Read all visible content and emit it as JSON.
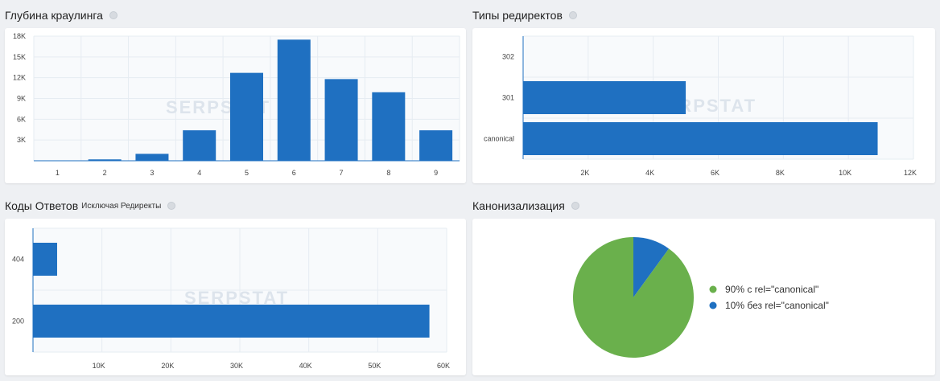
{
  "watermark": "SERPSTAT",
  "colors": {
    "bar": "#1f70c1",
    "pie_canonical": "#6ab04c",
    "pie_no_canonical": "#1f70c1",
    "grid": "#e6ecf2"
  },
  "panels": {
    "crawl_depth": {
      "title": "Глубина краулинга"
    },
    "redirect_types": {
      "title": "Типы редиректов"
    },
    "response_codes": {
      "title": "Коды Ответов",
      "subtitle": "Исключая Редиректы"
    },
    "canonicalization": {
      "title": "Канонизализация"
    }
  },
  "chart_data": [
    {
      "id": "crawl_depth",
      "type": "bar",
      "categories": [
        "1",
        "2",
        "3",
        "4",
        "5",
        "6",
        "7",
        "8",
        "9"
      ],
      "values": [
        0,
        200,
        1000,
        4400,
        12700,
        17500,
        11800,
        9900,
        4400
      ],
      "ylim": [
        0,
        18000
      ],
      "yticks": [
        "3K",
        "6K",
        "9K",
        "12K",
        "15K",
        "18K"
      ],
      "ytick_values": [
        3000,
        6000,
        9000,
        12000,
        15000,
        18000
      ]
    },
    {
      "id": "redirect_types",
      "type": "bar",
      "orientation": "horizontal",
      "categories": [
        "302",
        "301",
        "canonical"
      ],
      "values": [
        0,
        5000,
        10900
      ],
      "xlim": [
        0,
        12000
      ],
      "xticks": [
        "2K",
        "4K",
        "6K",
        "8K",
        "10K",
        "12K"
      ],
      "xtick_values": [
        2000,
        4000,
        6000,
        8000,
        10000,
        12000
      ]
    },
    {
      "id": "response_codes",
      "type": "bar",
      "orientation": "horizontal",
      "categories": [
        "404",
        "200"
      ],
      "values": [
        3500,
        57500
      ],
      "xlim": [
        0,
        60000
      ],
      "xticks": [
        "10K",
        "20K",
        "30K",
        "40K",
        "50K",
        "60K"
      ],
      "xtick_values": [
        10000,
        20000,
        30000,
        40000,
        50000,
        60000
      ]
    },
    {
      "id": "canonicalization",
      "type": "pie",
      "slices": [
        {
          "label": "10% без rel=\"canonical\"",
          "value": 10,
          "color": "#1f70c1"
        },
        {
          "label": "90% с rel=\"canonical\"",
          "value": 90,
          "color": "#6ab04c"
        }
      ]
    }
  ]
}
